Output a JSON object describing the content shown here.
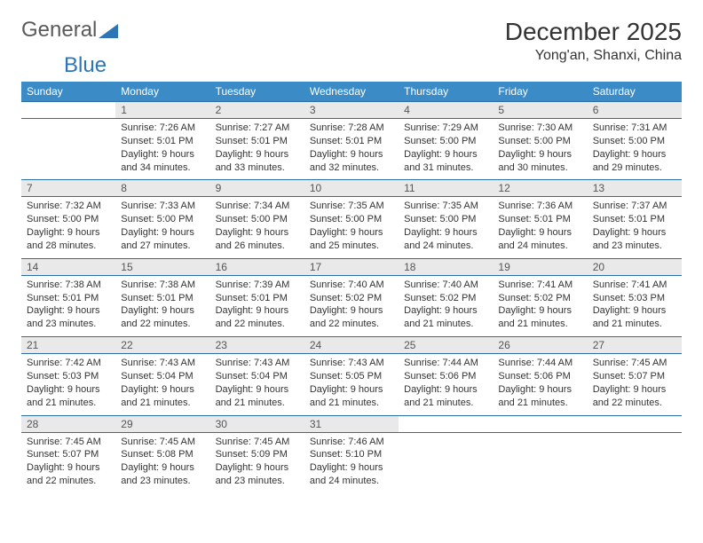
{
  "brand": {
    "part1": "General",
    "part2": "Blue",
    "triangle_color": "#2e75b6"
  },
  "title": "December 2025",
  "location": "Yong'an, Shanxi, China",
  "colors": {
    "header_bg": "#3b8bc7",
    "header_text": "#ffffff",
    "row_border": "#2e6da4",
    "daynum_bg": "#e9e9e9",
    "text": "#333333"
  },
  "weekdays": [
    "Sunday",
    "Monday",
    "Tuesday",
    "Wednesday",
    "Thursday",
    "Friday",
    "Saturday"
  ],
  "weeks": [
    [
      null,
      {
        "n": "1",
        "sr": "7:26 AM",
        "ss": "5:01 PM",
        "dl": "9 hours and 34 minutes."
      },
      {
        "n": "2",
        "sr": "7:27 AM",
        "ss": "5:01 PM",
        "dl": "9 hours and 33 minutes."
      },
      {
        "n": "3",
        "sr": "7:28 AM",
        "ss": "5:01 PM",
        "dl": "9 hours and 32 minutes."
      },
      {
        "n": "4",
        "sr": "7:29 AM",
        "ss": "5:00 PM",
        "dl": "9 hours and 31 minutes."
      },
      {
        "n": "5",
        "sr": "7:30 AM",
        "ss": "5:00 PM",
        "dl": "9 hours and 30 minutes."
      },
      {
        "n": "6",
        "sr": "7:31 AM",
        "ss": "5:00 PM",
        "dl": "9 hours and 29 minutes."
      }
    ],
    [
      {
        "n": "7",
        "sr": "7:32 AM",
        "ss": "5:00 PM",
        "dl": "9 hours and 28 minutes."
      },
      {
        "n": "8",
        "sr": "7:33 AM",
        "ss": "5:00 PM",
        "dl": "9 hours and 27 minutes."
      },
      {
        "n": "9",
        "sr": "7:34 AM",
        "ss": "5:00 PM",
        "dl": "9 hours and 26 minutes."
      },
      {
        "n": "10",
        "sr": "7:35 AM",
        "ss": "5:00 PM",
        "dl": "9 hours and 25 minutes."
      },
      {
        "n": "11",
        "sr": "7:35 AM",
        "ss": "5:00 PM",
        "dl": "9 hours and 24 minutes."
      },
      {
        "n": "12",
        "sr": "7:36 AM",
        "ss": "5:01 PM",
        "dl": "9 hours and 24 minutes."
      },
      {
        "n": "13",
        "sr": "7:37 AM",
        "ss": "5:01 PM",
        "dl": "9 hours and 23 minutes."
      }
    ],
    [
      {
        "n": "14",
        "sr": "7:38 AM",
        "ss": "5:01 PM",
        "dl": "9 hours and 23 minutes."
      },
      {
        "n": "15",
        "sr": "7:38 AM",
        "ss": "5:01 PM",
        "dl": "9 hours and 22 minutes."
      },
      {
        "n": "16",
        "sr": "7:39 AM",
        "ss": "5:01 PM",
        "dl": "9 hours and 22 minutes."
      },
      {
        "n": "17",
        "sr": "7:40 AM",
        "ss": "5:02 PM",
        "dl": "9 hours and 22 minutes."
      },
      {
        "n": "18",
        "sr": "7:40 AM",
        "ss": "5:02 PM",
        "dl": "9 hours and 21 minutes."
      },
      {
        "n": "19",
        "sr": "7:41 AM",
        "ss": "5:02 PM",
        "dl": "9 hours and 21 minutes."
      },
      {
        "n": "20",
        "sr": "7:41 AM",
        "ss": "5:03 PM",
        "dl": "9 hours and 21 minutes."
      }
    ],
    [
      {
        "n": "21",
        "sr": "7:42 AM",
        "ss": "5:03 PM",
        "dl": "9 hours and 21 minutes."
      },
      {
        "n": "22",
        "sr": "7:43 AM",
        "ss": "5:04 PM",
        "dl": "9 hours and 21 minutes."
      },
      {
        "n": "23",
        "sr": "7:43 AM",
        "ss": "5:04 PM",
        "dl": "9 hours and 21 minutes."
      },
      {
        "n": "24",
        "sr": "7:43 AM",
        "ss": "5:05 PM",
        "dl": "9 hours and 21 minutes."
      },
      {
        "n": "25",
        "sr": "7:44 AM",
        "ss": "5:06 PM",
        "dl": "9 hours and 21 minutes."
      },
      {
        "n": "26",
        "sr": "7:44 AM",
        "ss": "5:06 PM",
        "dl": "9 hours and 21 minutes."
      },
      {
        "n": "27",
        "sr": "7:45 AM",
        "ss": "5:07 PM",
        "dl": "9 hours and 22 minutes."
      }
    ],
    [
      {
        "n": "28",
        "sr": "7:45 AM",
        "ss": "5:07 PM",
        "dl": "9 hours and 22 minutes."
      },
      {
        "n": "29",
        "sr": "7:45 AM",
        "ss": "5:08 PM",
        "dl": "9 hours and 23 minutes."
      },
      {
        "n": "30",
        "sr": "7:45 AM",
        "ss": "5:09 PM",
        "dl": "9 hours and 23 minutes."
      },
      {
        "n": "31",
        "sr": "7:46 AM",
        "ss": "5:10 PM",
        "dl": "9 hours and 24 minutes."
      },
      null,
      null,
      null
    ]
  ],
  "labels": {
    "sunrise": "Sunrise:",
    "sunset": "Sunset:",
    "daylight": "Daylight:"
  }
}
